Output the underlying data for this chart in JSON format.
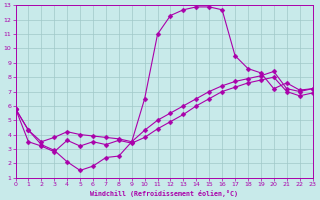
{
  "bg_color": "#c8eaea",
  "line_color": "#aa00aa",
  "grid_color": "#a0c8c8",
  "xlabel": "Windchill (Refroidissement éolien,°C)",
  "xlim": [
    0,
    23
  ],
  "ylim": [
    1,
    13
  ],
  "xticks": [
    0,
    1,
    2,
    3,
    4,
    5,
    6,
    7,
    8,
    9,
    10,
    11,
    12,
    13,
    14,
    15,
    16,
    17,
    18,
    19,
    20,
    21,
    22,
    23
  ],
  "yticks": [
    1,
    2,
    3,
    4,
    5,
    6,
    7,
    8,
    9,
    10,
    11,
    12,
    13
  ],
  "line1_x": [
    0,
    1,
    2,
    3,
    4,
    5,
    6,
    7,
    8,
    9,
    10,
    11,
    12,
    13,
    14,
    15,
    16,
    17,
    18,
    19,
    20,
    21,
    22,
    23
  ],
  "line1_y": [
    5.8,
    4.3,
    3.3,
    2.9,
    2.1,
    1.5,
    1.8,
    2.4,
    2.5,
    3.5,
    6.5,
    11.0,
    12.3,
    12.7,
    12.9,
    12.9,
    12.7,
    9.5,
    8.6,
    8.3,
    7.2,
    7.6,
    7.1,
    7.2
  ],
  "line2_x": [
    0,
    1,
    2,
    3,
    4,
    5,
    6,
    7,
    8,
    9,
    10,
    11,
    12,
    13,
    14,
    15,
    16,
    17,
    18,
    19,
    20,
    21,
    22,
    23
  ],
  "line2_y": [
    5.8,
    4.3,
    3.5,
    3.8,
    4.2,
    4.0,
    3.9,
    3.8,
    3.7,
    3.5,
    4.3,
    5.0,
    5.5,
    6.0,
    6.5,
    7.0,
    7.4,
    7.7,
    7.9,
    8.1,
    8.4,
    7.2,
    7.0,
    7.2
  ],
  "line3_x": [
    0,
    1,
    2,
    3,
    4,
    5,
    6,
    7,
    8,
    9,
    10,
    11,
    12,
    13,
    14,
    15,
    16,
    17,
    18,
    19,
    20,
    21,
    22,
    23
  ],
  "line3_y": [
    5.8,
    3.5,
    3.2,
    2.8,
    3.6,
    3.2,
    3.5,
    3.3,
    3.6,
    3.4,
    3.8,
    4.4,
    4.9,
    5.4,
    6.0,
    6.5,
    7.0,
    7.3,
    7.6,
    7.8,
    8.0,
    7.0,
    6.7,
    6.9
  ]
}
